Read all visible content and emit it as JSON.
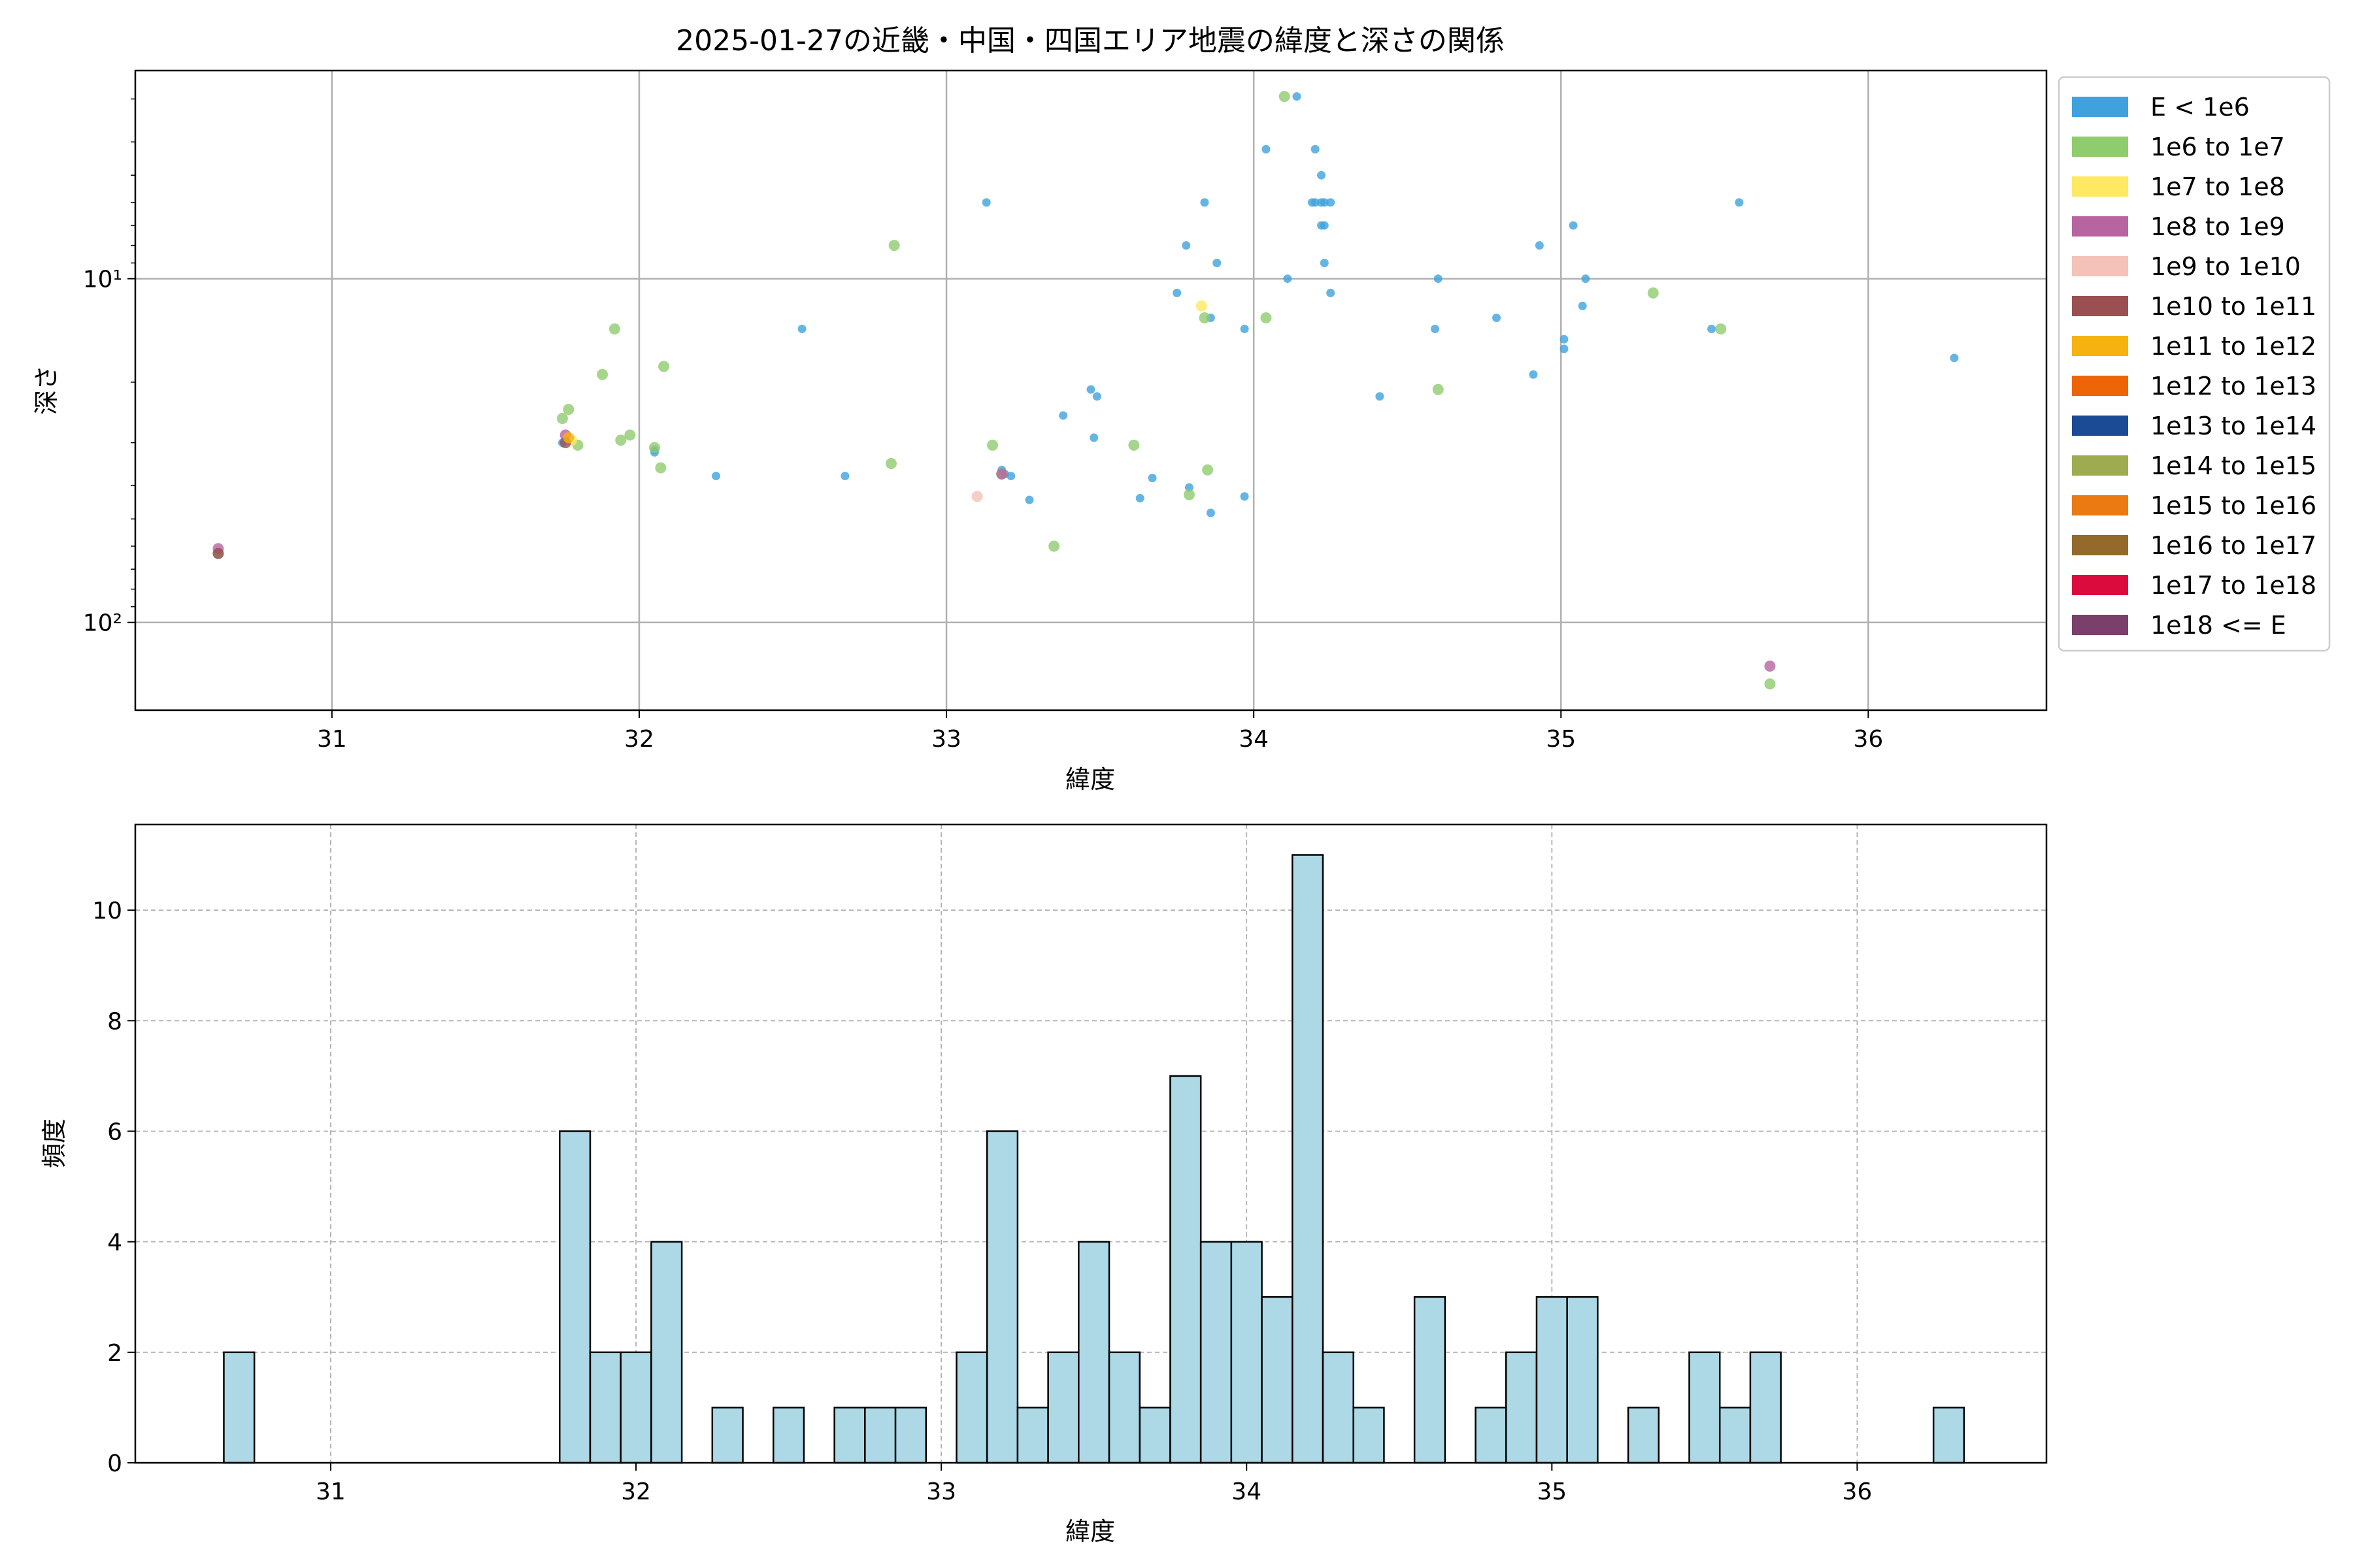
{
  "figure": {
    "title": "2025-01-27の近畿・中国・四国エリア地震の緯度と深さの関係"
  },
  "chart_data": [
    {
      "type": "scatter",
      "title": "2025-01-27の近畿・中国・四国エリア地震の緯度と深さの関係",
      "xlabel": "緯度",
      "ylabel": "深さ",
      "xlim": [
        30.36,
        36.58
      ],
      "ylim": [
        180,
        2.48
      ],
      "y_scale": "log",
      "y_inverted": true,
      "x_ticks": [
        "31",
        "32",
        "33",
        "34",
        "35",
        "36"
      ],
      "y_ticks": [
        "10¹",
        "10²"
      ],
      "grid": true,
      "legend_position": "outside-right",
      "series": [
        {
          "name": "E < 1e6",
          "color": "#3fa2dd",
          "points": [
            [
              31.75,
              30
            ],
            [
              32.05,
              31.5
            ],
            [
              32.05,
              32
            ],
            [
              32.25,
              37.5
            ],
            [
              32.53,
              14
            ],
            [
              32.67,
              37.5
            ],
            [
              33.13,
              6
            ],
            [
              33.18,
              36
            ],
            [
              33.19,
              37
            ],
            [
              33.21,
              37.5
            ],
            [
              33.27,
              44
            ],
            [
              33.38,
              25
            ],
            [
              33.47,
              21
            ],
            [
              33.49,
              22
            ],
            [
              33.48,
              29
            ],
            [
              33.63,
              43.5
            ],
            [
              33.67,
              38
            ],
            [
              33.75,
              11
            ],
            [
              33.78,
              8
            ],
            [
              33.79,
              40.5
            ],
            [
              33.84,
              6
            ],
            [
              33.86,
              13
            ],
            [
              33.88,
              9
            ],
            [
              33.97,
              14
            ],
            [
              33.97,
              43
            ],
            [
              33.86,
              48
            ],
            [
              34.04,
              4.2
            ],
            [
              34.11,
              10
            ],
            [
              34.14,
              2.95
            ],
            [
              34.19,
              6
            ],
            [
              34.2,
              6
            ],
            [
              34.2,
              4.2
            ],
            [
              34.22,
              5
            ],
            [
              34.22,
              6
            ],
            [
              34.22,
              7
            ],
            [
              34.23,
              7
            ],
            [
              34.23,
              6
            ],
            [
              34.23,
              9
            ],
            [
              34.25,
              6
            ],
            [
              34.25,
              11
            ],
            [
              34.41,
              22
            ],
            [
              34.59,
              14
            ],
            [
              34.6,
              10
            ],
            [
              34.79,
              13
            ],
            [
              34.91,
              19
            ],
            [
              34.93,
              8
            ],
            [
              35.01,
              15
            ],
            [
              35.01,
              16
            ],
            [
              35.04,
              7
            ],
            [
              35.07,
              12
            ],
            [
              35.08,
              10
            ],
            [
              35.49,
              14
            ],
            [
              35.58,
              6
            ],
            [
              36.28,
              17
            ]
          ]
        },
        {
          "name": "1e6 to 1e7",
          "color": "#8fcc6e",
          "points": [
            [
              30.63,
              63
            ],
            [
              31.75,
              25.5
            ],
            [
              31.77,
              24
            ],
            [
              31.8,
              30.5
            ],
            [
              31.88,
              19
            ],
            [
              31.92,
              14
            ],
            [
              31.94,
              29.5
            ],
            [
              31.97,
              28.5
            ],
            [
              32.05,
              31
            ],
            [
              32.07,
              35.5
            ],
            [
              32.08,
              18
            ],
            [
              32.82,
              34.5
            ],
            [
              32.83,
              8
            ],
            [
              33.15,
              30.5
            ],
            [
              33.18,
              37
            ],
            [
              33.35,
              60
            ],
            [
              33.61,
              30.5
            ],
            [
              33.79,
              42.5
            ],
            [
              33.84,
              13
            ],
            [
              33.85,
              36
            ],
            [
              34.04,
              13
            ],
            [
              34.1,
              2.95
            ],
            [
              34.6,
              21
            ],
            [
              35.3,
              11
            ],
            [
              35.52,
              14
            ],
            [
              35.68,
              151
            ]
          ]
        },
        {
          "name": "1e7 to 1e8",
          "color": "#ffe862",
          "points": [
            [
              33.83,
              12
            ],
            [
              31.78,
              29.5
            ]
          ]
        },
        {
          "name": "1e8 to 1e9",
          "color": "#b764a0",
          "points": [
            [
              30.63,
              61
            ],
            [
              31.76,
              28.5
            ],
            [
              33.18,
              37
            ],
            [
              35.68,
              134
            ]
          ]
        },
        {
          "name": "1e9 to 1e10",
          "color": "#f5c2b9",
          "points": [
            [
              33.1,
              43
            ]
          ]
        },
        {
          "name": "1e10 to 1e11",
          "color": "#9a5050",
          "points": [
            [
              30.63,
              63
            ],
            [
              31.76,
              30
            ]
          ]
        },
        {
          "name": "1e11 to 1e12",
          "color": "#f6b20f",
          "points": [
            [
              31.77,
              29
            ]
          ]
        },
        {
          "name": "1e12 to 1e13",
          "color": "#ee6508",
          "points": []
        },
        {
          "name": "1e13 to 1e14",
          "color": "#1b4b94",
          "points": []
        },
        {
          "name": "1e14 to 1e15",
          "color": "#9fab4f",
          "points": []
        },
        {
          "name": "1e15 to 1e16",
          "color": "#ec7a12",
          "points": []
        },
        {
          "name": "1e16 to 1e17",
          "color": "#936a2c",
          "points": []
        },
        {
          "name": "1e17 to 1e18",
          "color": "#dc0b3d",
          "points": []
        },
        {
          "name": "1e18 <= E",
          "color": "#7a3f6b",
          "points": []
        }
      ]
    },
    {
      "type": "bar",
      "subtype": "histogram",
      "title": "",
      "xlabel": "緯度",
      "ylabel": "頻度",
      "xlim": [
        30.36,
        36.62
      ],
      "ylim": [
        0,
        11.55
      ],
      "x_ticks": [
        "31",
        "32",
        "33",
        "34",
        "35",
        "36"
      ],
      "y_ticks": [
        "0",
        "2",
        "4",
        "6",
        "8",
        "10"
      ],
      "grid": true,
      "grid_style": "dashed",
      "bar_color": "#add8e6",
      "edge_color": "#000000",
      "bin_start": 30.65,
      "bin_width": 0.1,
      "values": [
        2,
        0,
        0,
        0,
        0,
        0,
        0,
        0,
        0,
        0,
        0,
        6,
        2,
        2,
        4,
        0,
        1,
        0,
        1,
        0,
        1,
        1,
        1,
        0,
        2,
        6,
        1,
        2,
        4,
        2,
        1,
        7,
        4,
        4,
        3,
        11,
        2,
        1,
        0,
        3,
        0,
        1,
        2,
        3,
        3,
        0,
        1,
        0,
        2,
        1,
        2,
        0,
        0,
        0,
        0,
        0,
        1
      ]
    }
  ]
}
